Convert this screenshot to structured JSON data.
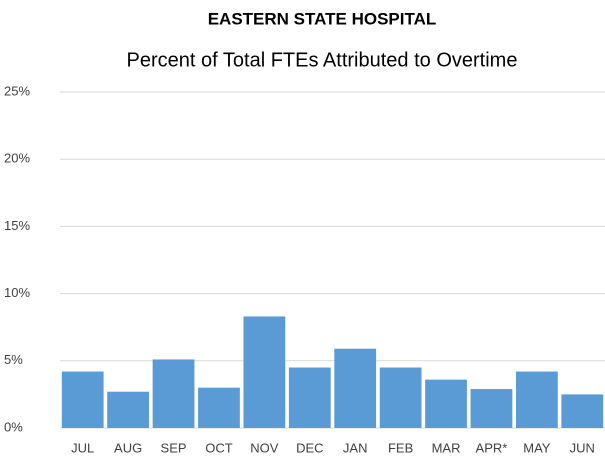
{
  "chart_data": {
    "type": "bar",
    "title": "EASTERN STATE HOSPITAL",
    "subtitle": "Percent of Total FTEs Attributed to Overtime",
    "categories": [
      "JUL",
      "AUG",
      "SEP",
      "OCT",
      "NOV",
      "DEC",
      "JAN",
      "FEB",
      "MAR",
      "APR*",
      "MAY",
      "JUN"
    ],
    "values": [
      4.2,
      2.7,
      5.1,
      3.0,
      8.3,
      4.5,
      5.9,
      4.5,
      3.6,
      2.9,
      4.2,
      2.5
    ],
    "color": "#5b9bd5",
    "ylim": [
      0,
      25
    ],
    "yticks": [
      {
        "value": 0,
        "label": "0%"
      },
      {
        "value": 5,
        "label": "5%"
      },
      {
        "value": 10,
        "label": "10%"
      },
      {
        "value": 15,
        "label": "15%"
      },
      {
        "value": 20,
        "label": "20%"
      },
      {
        "value": 25,
        "label": "25%"
      }
    ],
    "grid": true
  }
}
